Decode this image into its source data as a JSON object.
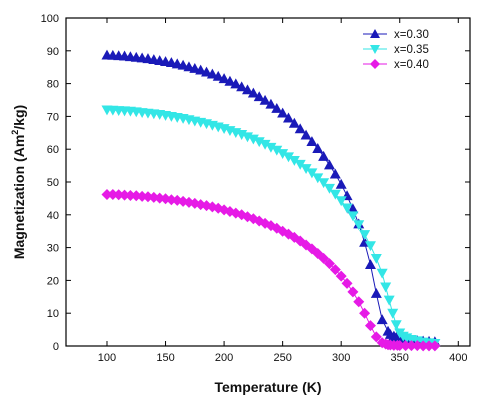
{
  "chart_data": {
    "type": "scatter",
    "xlabel": "Temperature (K)",
    "ylabel_main": "Magnetization (Am",
    "ylabel_sup": "2",
    "ylabel_tail": "/kg)",
    "xlim": [
      65,
      410
    ],
    "ylim": [
      0,
      100
    ],
    "xticks": [
      100,
      150,
      200,
      250,
      300,
      350,
      400
    ],
    "yticks": [
      0,
      10,
      20,
      30,
      40,
      50,
      60,
      70,
      80,
      90,
      100
    ],
    "grid": false,
    "legend_position": "top-right",
    "series": [
      {
        "name": "x=0.30",
        "marker": "triangle-up",
        "color": "#1a1ab8",
        "x": [
          100,
          105,
          110,
          115,
          120,
          125,
          130,
          135,
          140,
          145,
          150,
          155,
          160,
          165,
          170,
          175,
          180,
          185,
          190,
          195,
          200,
          205,
          210,
          215,
          220,
          225,
          230,
          235,
          240,
          245,
          250,
          255,
          260,
          265,
          270,
          275,
          280,
          285,
          290,
          295,
          300,
          305,
          310,
          315,
          320,
          325,
          330,
          335,
          340,
          342,
          345,
          347,
          350,
          352,
          355,
          360,
          365,
          370,
          375,
          380
        ],
        "y": [
          88.7,
          88.6,
          88.5,
          88.4,
          88.2,
          88.0,
          87.8,
          87.6,
          87.3,
          87.0,
          86.7,
          86.4,
          86.0,
          85.6,
          85.1,
          84.6,
          84.1,
          83.5,
          82.9,
          82.2,
          81.5,
          80.7,
          79.9,
          79.0,
          78.1,
          77.1,
          76.0,
          74.9,
          73.7,
          72.4,
          71.0,
          69.5,
          67.9,
          66.2,
          64.3,
          62.3,
          60.2,
          57.8,
          55.2,
          52.4,
          49.3,
          45.8,
          41.8,
          37.2,
          31.6,
          24.8,
          16.0,
          8.0,
          4.5,
          3.5,
          3.0,
          2.6,
          2.3,
          2.1,
          1.9,
          1.7,
          1.6,
          1.5,
          1.4,
          1.3
        ]
      },
      {
        "name": "x=0.35",
        "marker": "triangle-down",
        "color": "#33e6e6",
        "x": [
          100,
          105,
          110,
          115,
          120,
          125,
          130,
          135,
          140,
          145,
          150,
          155,
          160,
          165,
          170,
          175,
          180,
          185,
          190,
          195,
          200,
          205,
          210,
          215,
          220,
          225,
          230,
          235,
          240,
          245,
          250,
          255,
          260,
          265,
          270,
          275,
          280,
          285,
          290,
          295,
          300,
          305,
          310,
          315,
          320,
          325,
          330,
          335,
          338,
          341,
          344,
          347,
          350,
          353,
          356,
          360,
          365,
          370,
          375,
          380
        ],
        "y": [
          72.0,
          71.9,
          71.8,
          71.7,
          71.6,
          71.4,
          71.2,
          71.0,
          70.8,
          70.6,
          70.3,
          70.0,
          69.7,
          69.4,
          69.0,
          68.6,
          68.2,
          67.8,
          67.3,
          66.8,
          66.3,
          65.7,
          65.1,
          64.5,
          63.8,
          63.1,
          62.3,
          61.5,
          60.6,
          59.7,
          58.7,
          57.7,
          56.6,
          55.4,
          54.1,
          52.8,
          51.3,
          49.8,
          48.1,
          46.3,
          44.3,
          42.1,
          39.7,
          37.0,
          34.0,
          30.6,
          26.7,
          22.2,
          18.0,
          14.0,
          10.0,
          6.5,
          4.0,
          3.0,
          2.5,
          2.0,
          1.6,
          1.2,
          1.0,
          0.8
        ]
      },
      {
        "name": "x=0.40",
        "marker": "diamond",
        "color": "#e61ae6",
        "x": [
          100,
          105,
          110,
          115,
          120,
          125,
          130,
          135,
          140,
          145,
          150,
          155,
          160,
          165,
          170,
          175,
          180,
          185,
          190,
          195,
          200,
          205,
          210,
          215,
          220,
          225,
          230,
          235,
          240,
          245,
          250,
          255,
          260,
          265,
          270,
          275,
          280,
          285,
          290,
          295,
          300,
          305,
          310,
          315,
          320,
          325,
          330,
          335,
          338,
          340,
          342,
          345,
          348,
          350,
          355,
          360,
          365,
          370,
          375,
          380
        ],
        "y": [
          46.2,
          46.2,
          46.1,
          46.0,
          45.9,
          45.8,
          45.6,
          45.5,
          45.3,
          45.1,
          44.9,
          44.6,
          44.4,
          44.1,
          43.8,
          43.5,
          43.1,
          42.8,
          42.4,
          42.0,
          41.5,
          41.0,
          40.5,
          40.0,
          39.4,
          38.8,
          38.1,
          37.4,
          36.7,
          35.9,
          35.0,
          34.1,
          33.1,
          32.0,
          30.8,
          29.6,
          28.2,
          26.7,
          25.1,
          23.3,
          21.3,
          19.1,
          16.5,
          13.5,
          10.0,
          6.2,
          2.8,
          1.0,
          0.6,
          0.4,
          0.3,
          0.2,
          0.2,
          0.15,
          0.1,
          0.1,
          0.1,
          0.05,
          0.05,
          0.05
        ]
      }
    ]
  }
}
